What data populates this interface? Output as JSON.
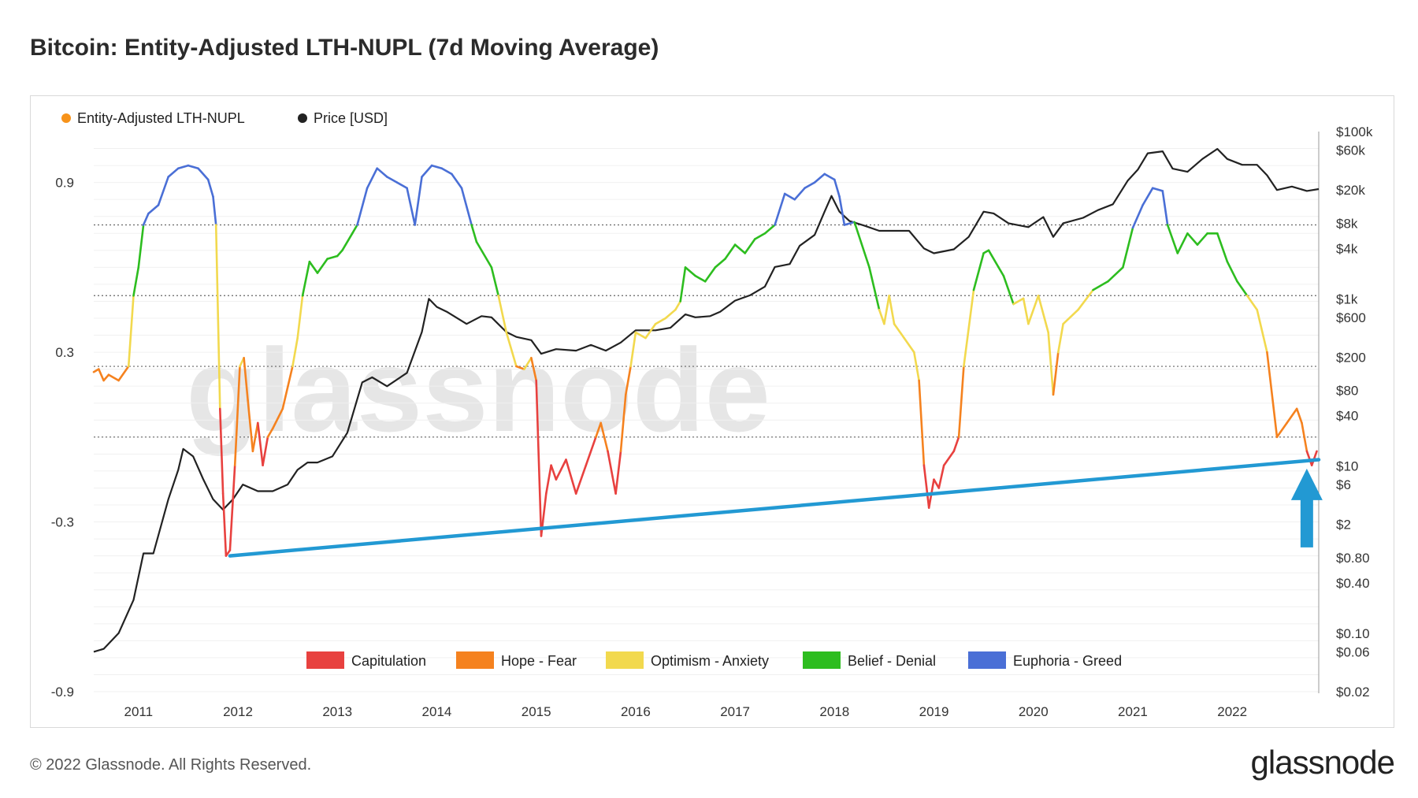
{
  "title": "Bitcoin: Entity-Adjusted LTH-NUPL (7d Moving Average)",
  "footer": "© 2022 Glassnode. All Rights Reserved.",
  "brand": "glassnode",
  "watermark": "glassnode",
  "legend_top": [
    {
      "label": "Entity-Adjusted LTH-NUPL",
      "color": "#f7931a"
    },
    {
      "label": "Price [USD]",
      "color": "#222222"
    }
  ],
  "legend_bottom": [
    {
      "label": "Capitulation",
      "color": "#e8413f"
    },
    {
      "label": "Hope - Fear",
      "color": "#f5821f"
    },
    {
      "label": "Optimism - Anxiety",
      "color": "#f2d94e"
    },
    {
      "label": "Belief - Denial",
      "color": "#2dbd1f"
    },
    {
      "label": "Euphoria - Greed",
      "color": "#4a6fd6"
    }
  ],
  "chart_data": {
    "type": "line",
    "x_ticks": [
      "2011",
      "2012",
      "2013",
      "2014",
      "2015",
      "2016",
      "2017",
      "2018",
      "2019",
      "2020",
      "2021",
      "2022"
    ],
    "left_ticks": [
      "0.9",
      "0.3",
      "-0.3",
      "-0.9"
    ],
    "right_ticks": [
      "$100k",
      "$60k",
      "$20k",
      "$8k",
      "$4k",
      "$1k",
      "$600",
      "$200",
      "$80",
      "$40",
      "$10",
      "$6",
      "$2",
      "$0.80",
      "$0.40",
      "$0.10",
      "$0.06",
      "$0.02"
    ],
    "zone_thresholds": [
      0.75,
      0.5,
      0.25,
      0
    ],
    "xlim": [
      2010.55,
      2022.87
    ],
    "left_ylim": [
      -0.9,
      1.08
    ],
    "right_ylim_log10": [
      -1.699,
      5.0
    ],
    "series": [
      {
        "name": "Entity-Adjusted LTH-NUPL",
        "points": [
          [
            2010.55,
            0.23
          ],
          [
            2010.6,
            0.24
          ],
          [
            2010.65,
            0.2
          ],
          [
            2010.7,
            0.22
          ],
          [
            2010.8,
            0.2
          ],
          [
            2010.9,
            0.25
          ],
          [
            2010.95,
            0.5
          ],
          [
            2011.0,
            0.6
          ],
          [
            2011.05,
            0.75
          ],
          [
            2011.1,
            0.79
          ],
          [
            2011.2,
            0.82
          ],
          [
            2011.3,
            0.92
          ],
          [
            2011.4,
            0.95
          ],
          [
            2011.5,
            0.96
          ],
          [
            2011.6,
            0.95
          ],
          [
            2011.7,
            0.91
          ],
          [
            2011.75,
            0.85
          ],
          [
            2011.78,
            0.75
          ],
          [
            2011.82,
            0.1
          ],
          [
            2011.85,
            -0.2
          ],
          [
            2011.88,
            -0.42
          ],
          [
            2011.92,
            -0.4
          ],
          [
            2011.97,
            -0.1
          ],
          [
            2012.02,
            0.25
          ],
          [
            2012.06,
            0.28
          ],
          [
            2012.1,
            0.13
          ],
          [
            2012.15,
            -0.05
          ],
          [
            2012.2,
            0.05
          ],
          [
            2012.25,
            -0.1
          ],
          [
            2012.3,
            0.0
          ],
          [
            2012.35,
            0.03
          ],
          [
            2012.45,
            0.1
          ],
          [
            2012.55,
            0.25
          ],
          [
            2012.6,
            0.35
          ],
          [
            2012.65,
            0.5
          ],
          [
            2012.72,
            0.62
          ],
          [
            2012.8,
            0.58
          ],
          [
            2012.9,
            0.63
          ],
          [
            2013.0,
            0.64
          ],
          [
            2013.05,
            0.66
          ],
          [
            2013.15,
            0.72
          ],
          [
            2013.2,
            0.75
          ],
          [
            2013.3,
            0.88
          ],
          [
            2013.4,
            0.95
          ],
          [
            2013.5,
            0.92
          ],
          [
            2013.6,
            0.9
          ],
          [
            2013.7,
            0.88
          ],
          [
            2013.78,
            0.75
          ],
          [
            2013.85,
            0.92
          ],
          [
            2013.95,
            0.96
          ],
          [
            2014.05,
            0.95
          ],
          [
            2014.15,
            0.93
          ],
          [
            2014.25,
            0.88
          ],
          [
            2014.35,
            0.75
          ],
          [
            2014.4,
            0.69
          ],
          [
            2014.55,
            0.6
          ],
          [
            2014.62,
            0.5
          ],
          [
            2014.7,
            0.37
          ],
          [
            2014.8,
            0.25
          ],
          [
            2014.88,
            0.24
          ],
          [
            2014.95,
            0.28
          ],
          [
            2015.0,
            0.2
          ],
          [
            2015.05,
            -0.35
          ],
          [
            2015.1,
            -0.2
          ],
          [
            2015.15,
            -0.1
          ],
          [
            2015.2,
            -0.15
          ],
          [
            2015.3,
            -0.08
          ],
          [
            2015.4,
            -0.2
          ],
          [
            2015.5,
            -0.1
          ],
          [
            2015.6,
            0.0
          ],
          [
            2015.65,
            0.05
          ],
          [
            2015.72,
            -0.05
          ],
          [
            2015.8,
            -0.2
          ],
          [
            2015.85,
            -0.05
          ],
          [
            2015.9,
            0.15
          ],
          [
            2015.95,
            0.25
          ],
          [
            2016.0,
            0.37
          ],
          [
            2016.1,
            0.35
          ],
          [
            2016.2,
            0.4
          ],
          [
            2016.3,
            0.42
          ],
          [
            2016.4,
            0.45
          ],
          [
            2016.45,
            0.48
          ],
          [
            2016.5,
            0.6
          ],
          [
            2016.6,
            0.57
          ],
          [
            2016.7,
            0.55
          ],
          [
            2016.8,
            0.6
          ],
          [
            2016.9,
            0.63
          ],
          [
            2017.0,
            0.68
          ],
          [
            2017.1,
            0.65
          ],
          [
            2017.2,
            0.7
          ],
          [
            2017.3,
            0.72
          ],
          [
            2017.4,
            0.75
          ],
          [
            2017.5,
            0.86
          ],
          [
            2017.6,
            0.84
          ],
          [
            2017.7,
            0.88
          ],
          [
            2017.8,
            0.9
          ],
          [
            2017.9,
            0.93
          ],
          [
            2018.0,
            0.91
          ],
          [
            2018.05,
            0.85
          ],
          [
            2018.1,
            0.75
          ],
          [
            2018.2,
            0.76
          ],
          [
            2018.35,
            0.6
          ],
          [
            2018.45,
            0.45
          ],
          [
            2018.5,
            0.4
          ],
          [
            2018.55,
            0.5
          ],
          [
            2018.6,
            0.4
          ],
          [
            2018.7,
            0.35
          ],
          [
            2018.8,
            0.3
          ],
          [
            2018.85,
            0.2
          ],
          [
            2018.9,
            -0.1
          ],
          [
            2018.95,
            -0.25
          ],
          [
            2019.0,
            -0.15
          ],
          [
            2019.05,
            -0.18
          ],
          [
            2019.1,
            -0.1
          ],
          [
            2019.2,
            -0.05
          ],
          [
            2019.25,
            0.0
          ],
          [
            2019.3,
            0.25
          ],
          [
            2019.4,
            0.52
          ],
          [
            2019.5,
            0.65
          ],
          [
            2019.55,
            0.66
          ],
          [
            2019.65,
            0.6
          ],
          [
            2019.7,
            0.57
          ],
          [
            2019.8,
            0.47
          ],
          [
            2019.9,
            0.49
          ],
          [
            2019.95,
            0.4
          ],
          [
            2020.05,
            0.5
          ],
          [
            2020.15,
            0.37
          ],
          [
            2020.2,
            0.15
          ],
          [
            2020.25,
            0.3
          ],
          [
            2020.3,
            0.4
          ],
          [
            2020.45,
            0.45
          ],
          [
            2020.6,
            0.52
          ],
          [
            2020.75,
            0.55
          ],
          [
            2020.9,
            0.6
          ],
          [
            2021.0,
            0.74
          ],
          [
            2021.1,
            0.82
          ],
          [
            2021.2,
            0.88
          ],
          [
            2021.3,
            0.87
          ],
          [
            2021.35,
            0.75
          ],
          [
            2021.45,
            0.65
          ],
          [
            2021.55,
            0.72
          ],
          [
            2021.65,
            0.68
          ],
          [
            2021.75,
            0.72
          ],
          [
            2021.85,
            0.72
          ],
          [
            2021.95,
            0.62
          ],
          [
            2022.05,
            0.55
          ],
          [
            2022.15,
            0.5
          ],
          [
            2022.25,
            0.45
          ],
          [
            2022.35,
            0.3
          ],
          [
            2022.45,
            0.0
          ],
          [
            2022.55,
            0.05
          ],
          [
            2022.65,
            0.1
          ],
          [
            2022.7,
            0.05
          ],
          [
            2022.75,
            -0.05
          ],
          [
            2022.8,
            -0.1
          ],
          [
            2022.85,
            -0.05
          ]
        ]
      },
      {
        "name": "Price [USD]",
        "points": [
          [
            2010.55,
            0.06
          ],
          [
            2010.65,
            0.065
          ],
          [
            2010.8,
            0.1
          ],
          [
            2010.95,
            0.25
          ],
          [
            2011.05,
            0.9
          ],
          [
            2011.15,
            0.9
          ],
          [
            2011.3,
            4
          ],
          [
            2011.4,
            9
          ],
          [
            2011.45,
            16
          ],
          [
            2011.55,
            13
          ],
          [
            2011.65,
            7
          ],
          [
            2011.75,
            4
          ],
          [
            2011.85,
            3
          ],
          [
            2011.95,
            4
          ],
          [
            2012.05,
            6
          ],
          [
            2012.2,
            5
          ],
          [
            2012.35,
            5
          ],
          [
            2012.5,
            6
          ],
          [
            2012.6,
            9
          ],
          [
            2012.7,
            11
          ],
          [
            2012.8,
            11
          ],
          [
            2012.95,
            13
          ],
          [
            2013.1,
            25
          ],
          [
            2013.25,
            100
          ],
          [
            2013.35,
            115
          ],
          [
            2013.5,
            90
          ],
          [
            2013.7,
            130
          ],
          [
            2013.85,
            400
          ],
          [
            2013.92,
            1000
          ],
          [
            2014.0,
            800
          ],
          [
            2014.1,
            700
          ],
          [
            2014.3,
            500
          ],
          [
            2014.45,
            620
          ],
          [
            2014.55,
            600
          ],
          [
            2014.7,
            400
          ],
          [
            2014.8,
            350
          ],
          [
            2014.95,
            320
          ],
          [
            2015.05,
            220
          ],
          [
            2015.2,
            250
          ],
          [
            2015.4,
            240
          ],
          [
            2015.55,
            280
          ],
          [
            2015.7,
            240
          ],
          [
            2015.85,
            300
          ],
          [
            2016.0,
            420
          ],
          [
            2016.2,
            420
          ],
          [
            2016.35,
            450
          ],
          [
            2016.5,
            650
          ],
          [
            2016.6,
            600
          ],
          [
            2016.75,
            620
          ],
          [
            2016.85,
            700
          ],
          [
            2017.0,
            950
          ],
          [
            2017.15,
            1100
          ],
          [
            2017.3,
            1400
          ],
          [
            2017.4,
            2400
          ],
          [
            2017.55,
            2600
          ],
          [
            2017.65,
            4300
          ],
          [
            2017.8,
            5800
          ],
          [
            2017.9,
            11000
          ],
          [
            2017.97,
            17000
          ],
          [
            2018.05,
            11000
          ],
          [
            2018.15,
            8500
          ],
          [
            2018.3,
            7500
          ],
          [
            2018.45,
            6500
          ],
          [
            2018.6,
            6500
          ],
          [
            2018.75,
            6500
          ],
          [
            2018.9,
            4000
          ],
          [
            2019.0,
            3500
          ],
          [
            2019.2,
            3900
          ],
          [
            2019.35,
            5500
          ],
          [
            2019.5,
            11000
          ],
          [
            2019.6,
            10500
          ],
          [
            2019.75,
            8000
          ],
          [
            2019.95,
            7200
          ],
          [
            2020.1,
            9500
          ],
          [
            2020.2,
            5500
          ],
          [
            2020.3,
            8000
          ],
          [
            2020.5,
            9300
          ],
          [
            2020.65,
            11500
          ],
          [
            2020.8,
            13500
          ],
          [
            2020.95,
            26000
          ],
          [
            2021.05,
            35000
          ],
          [
            2021.15,
            55000
          ],
          [
            2021.3,
            58000
          ],
          [
            2021.4,
            36000
          ],
          [
            2021.55,
            33000
          ],
          [
            2021.7,
            47000
          ],
          [
            2021.85,
            62000
          ],
          [
            2021.95,
            47000
          ],
          [
            2022.1,
            40000
          ],
          [
            2022.25,
            40000
          ],
          [
            2022.35,
            30000
          ],
          [
            2022.45,
            20000
          ],
          [
            2022.6,
            22000
          ],
          [
            2022.75,
            19500
          ],
          [
            2022.87,
            20500
          ]
        ]
      }
    ],
    "trendline": {
      "color": "#2299d3",
      "from": [
        2011.92,
        -0.42
      ],
      "to": [
        2022.87,
        -0.08
      ]
    },
    "arrow": {
      "color": "#2299d3",
      "x": 2022.75
    }
  }
}
